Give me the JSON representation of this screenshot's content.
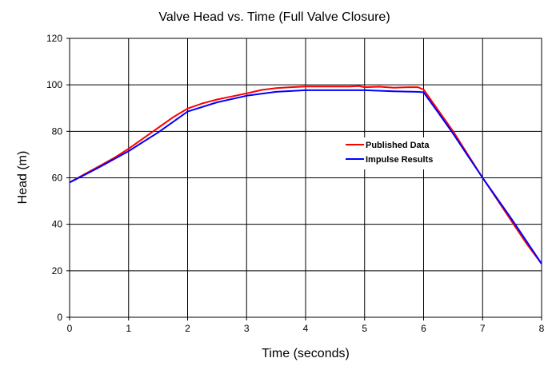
{
  "chart_data": {
    "type": "line",
    "title": "Valve Head vs. Time (Full Valve Closure)",
    "xlabel": "Time (seconds)",
    "ylabel": "Head (m)",
    "xlim": [
      0,
      8
    ],
    "ylim": [
      0,
      120
    ],
    "xticks": [
      0,
      1,
      2,
      3,
      4,
      5,
      6,
      7,
      8
    ],
    "yticks": [
      0,
      20,
      40,
      60,
      80,
      100,
      120
    ],
    "grid": true,
    "legend_position": "center-right",
    "series": [
      {
        "name": "Published Data",
        "color": "#ff0000",
        "points": [
          [
            0,
            58
          ],
          [
            0.25,
            61.5
          ],
          [
            0.5,
            65
          ],
          [
            0.75,
            68.5
          ],
          [
            1,
            72.5
          ],
          [
            1.25,
            77
          ],
          [
            1.5,
            81.5
          ],
          [
            1.75,
            86
          ],
          [
            2,
            89.8
          ],
          [
            2.25,
            92
          ],
          [
            2.5,
            93.7
          ],
          [
            2.75,
            95
          ],
          [
            3,
            96.3
          ],
          [
            3.25,
            97.8
          ],
          [
            3.5,
            98.6
          ],
          [
            3.75,
            99
          ],
          [
            4,
            99.3
          ],
          [
            4.25,
            99.3
          ],
          [
            4.5,
            99.3
          ],
          [
            4.75,
            99.3
          ],
          [
            4.9,
            99.5
          ],
          [
            5,
            99
          ],
          [
            5.25,
            99.2
          ],
          [
            5.5,
            98.8
          ],
          [
            5.75,
            99
          ],
          [
            5.9,
            99
          ],
          [
            6,
            98
          ],
          [
            6.25,
            89
          ],
          [
            6.5,
            80
          ],
          [
            6.75,
            70
          ],
          [
            7,
            60
          ],
          [
            7.25,
            50.5
          ],
          [
            7.5,
            41
          ],
          [
            7.75,
            31.5
          ],
          [
            8,
            23
          ]
        ]
      },
      {
        "name": "Impulse Results",
        "color": "#0000ff",
        "points": [
          [
            0,
            58
          ],
          [
            0.25,
            61.2
          ],
          [
            0.5,
            64.5
          ],
          [
            0.75,
            68
          ],
          [
            1,
            71.5
          ],
          [
            1.25,
            75.5
          ],
          [
            1.5,
            79.5
          ],
          [
            1.75,
            84
          ],
          [
            2,
            88.5
          ],
          [
            2.5,
            92.5
          ],
          [
            3,
            95.3
          ],
          [
            3.5,
            97
          ],
          [
            4,
            97.7
          ],
          [
            4.5,
            97.7
          ],
          [
            5,
            97.7
          ],
          [
            5.5,
            97.2
          ],
          [
            5.9,
            97
          ],
          [
            6,
            96.8
          ],
          [
            6.25,
            88
          ],
          [
            6.5,
            79
          ],
          [
            6.75,
            69.5
          ],
          [
            7,
            60
          ],
          [
            7.25,
            51
          ],
          [
            7.5,
            42
          ],
          [
            7.75,
            32.5
          ],
          [
            8,
            23
          ]
        ]
      }
    ]
  }
}
